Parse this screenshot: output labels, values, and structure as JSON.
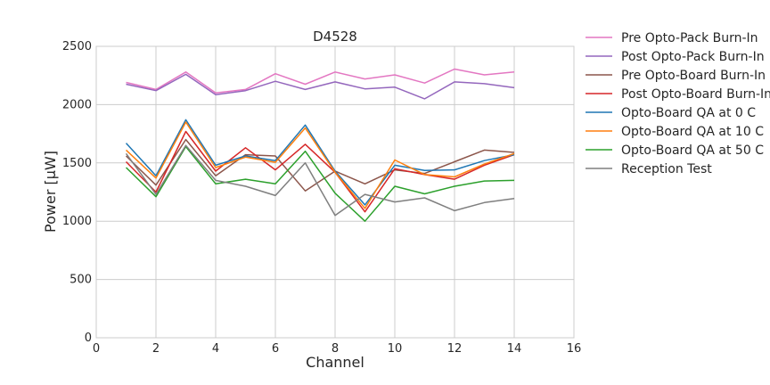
{
  "chart_data": {
    "type": "line",
    "title": "D4528",
    "xlabel": "Channel",
    "ylabel": "Power [μW]",
    "xlim": [
      0,
      16
    ],
    "ylim": [
      0,
      2500
    ],
    "xticks": [
      0,
      2,
      4,
      6,
      8,
      10,
      12,
      14,
      16
    ],
    "yticks": [
      0,
      500,
      1000,
      1500,
      2000,
      2500
    ],
    "grid": true,
    "legend_position": "outside-right",
    "x": [
      1,
      2,
      3,
      4,
      5,
      6,
      7,
      8,
      9,
      10,
      11,
      12,
      13,
      14
    ],
    "series": [
      {
        "name": "Pre Opto-Pack Burn-In",
        "color": "#e377c2",
        "values": [
          2190,
          2130,
          2280,
          2100,
          2130,
          2265,
          2175,
          2280,
          2220,
          2255,
          2185,
          2305,
          2255,
          2280
        ]
      },
      {
        "name": "Post Opto-Pack Burn-In",
        "color": "#9467bd",
        "values": [
          2175,
          2120,
          2260,
          2085,
          2120,
          2200,
          2130,
          2195,
          2135,
          2150,
          2050,
          2195,
          2180,
          2145
        ]
      },
      {
        "name": "Pre Opto-Board Burn-In",
        "color": "#8c564b",
        "values": [
          1560,
          1310,
          1700,
          1390,
          1570,
          1560,
          1260,
          1430,
          1320,
          1440,
          1410,
          1510,
          1610,
          1590
        ]
      },
      {
        "name": "Post Opto-Board Burn-In",
        "color": "#d62728",
        "values": [
          1510,
          1250,
          1770,
          1430,
          1630,
          1440,
          1660,
          1420,
          1080,
          1450,
          1400,
          1360,
          1480,
          1570
        ]
      },
      {
        "name": "Opto-Board QA at 0 C",
        "color": "#1f77b4",
        "values": [
          1670,
          1390,
          1870,
          1480,
          1560,
          1520,
          1825,
          1430,
          1140,
          1480,
          1435,
          1440,
          1520,
          1570
        ]
      },
      {
        "name": "Opto-Board QA at 10 C",
        "color": "#ff7f0e",
        "values": [
          1610,
          1370,
          1850,
          1460,
          1550,
          1505,
          1800,
          1420,
          1110,
          1525,
          1400,
          1380,
          1490,
          1580
        ]
      },
      {
        "name": "Opto-Board QA at 50 C",
        "color": "#2ca02c",
        "values": [
          1460,
          1210,
          1640,
          1320,
          1360,
          1320,
          1600,
          1240,
          1000,
          1300,
          1235,
          1300,
          1345,
          1350
        ]
      },
      {
        "name": "Reception Test",
        "color": "#7f7f7f",
        "values": [
          1580,
          1230,
          1650,
          1350,
          1300,
          1220,
          1500,
          1050,
          1230,
          1165,
          1200,
          1090,
          1160,
          1195
        ]
      }
    ]
  }
}
